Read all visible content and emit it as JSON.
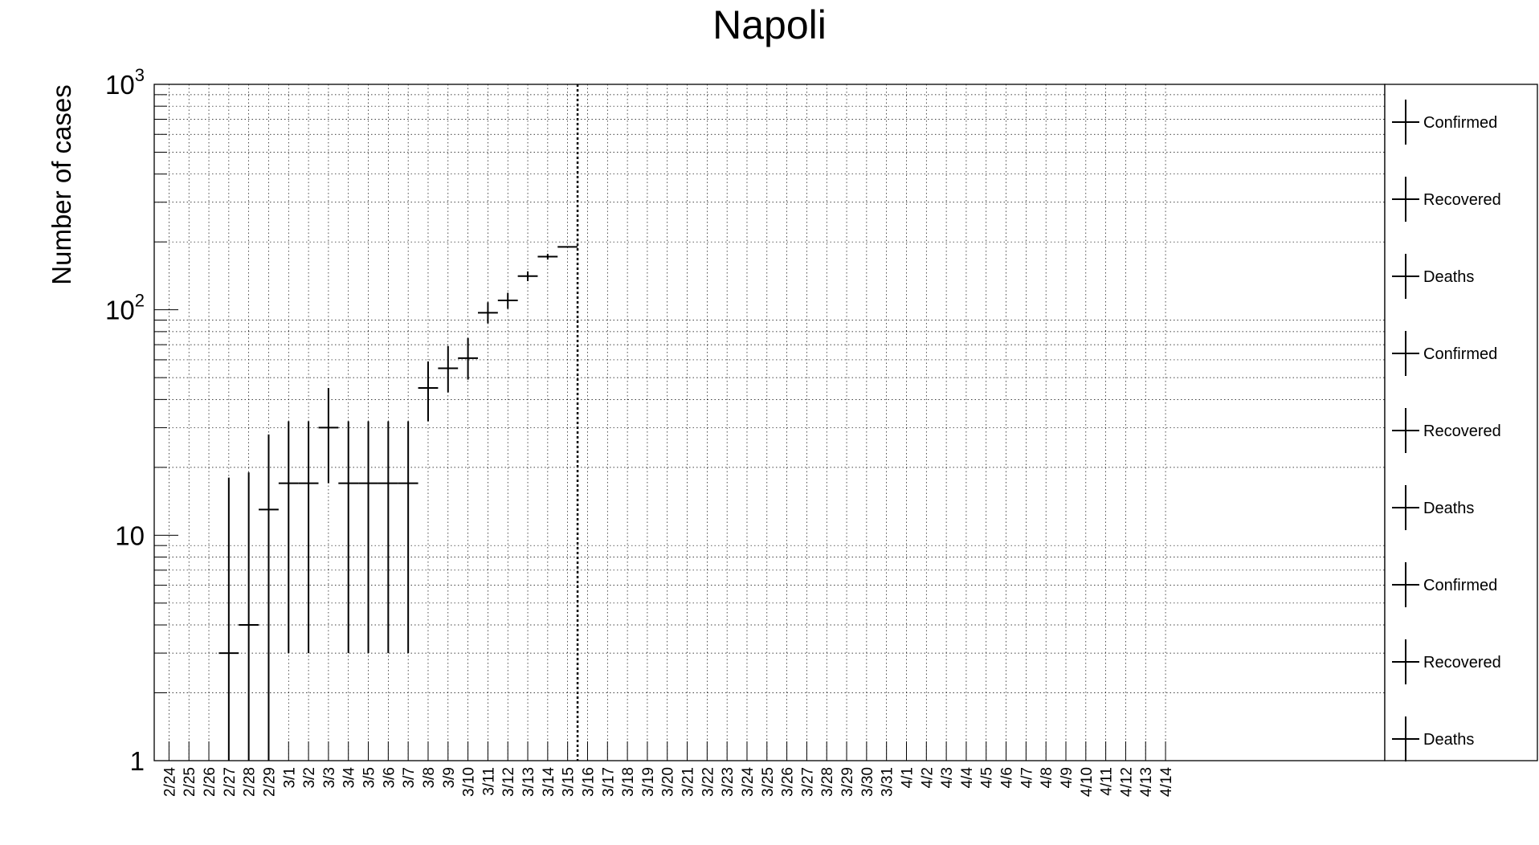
{
  "chart_data": {
    "type": "scatter",
    "title": "Napoli",
    "xlabel": "",
    "ylabel": "Number of cases",
    "yscale": "log",
    "ylim": [
      1,
      1000
    ],
    "grid": true,
    "legend_position": "right",
    "yticks": [
      {
        "value": 1,
        "label": "1"
      },
      {
        "value": 10,
        "label": "10"
      },
      {
        "value": 100,
        "label": "10",
        "sup": "2"
      },
      {
        "value": 1000,
        "label": "10",
        "sup": "3"
      }
    ],
    "categories": [
      "2/24",
      "2/25",
      "2/26",
      "2/27",
      "2/28",
      "2/29",
      "3/1",
      "3/2",
      "3/3",
      "3/4",
      "3/5",
      "3/6",
      "3/7",
      "3/8",
      "3/9",
      "3/10",
      "3/11",
      "3/12",
      "3/13",
      "3/14",
      "3/15",
      "3/16",
      "3/17",
      "3/18",
      "3/19",
      "3/20",
      "3/21",
      "3/22",
      "3/23",
      "3/24",
      "3/25",
      "3/26",
      "3/27",
      "3/28",
      "3/29",
      "3/30",
      "3/31",
      "4/1",
      "4/2",
      "4/3",
      "4/4",
      "4/5",
      "4/6",
      "4/7",
      "4/8",
      "4/9",
      "4/10",
      "4/11",
      "4/12",
      "4/13",
      "4/14"
    ],
    "vertical_marker": {
      "between": [
        "3/15",
        "3/16"
      ],
      "style": "dotted"
    },
    "series": [
      {
        "name": "Confirmed",
        "points": [
          {
            "x": "2/27",
            "y": 3,
            "ylow": 1,
            "yhigh": 18
          },
          {
            "x": "2/28",
            "y": 4,
            "ylow": 1,
            "yhigh": 19
          },
          {
            "x": "2/29",
            "y": 13,
            "ylow": 1,
            "yhigh": 28
          },
          {
            "x": "3/1",
            "y": 17,
            "ylow": 3,
            "yhigh": 32
          },
          {
            "x": "3/2",
            "y": 17,
            "ylow": 3,
            "yhigh": 32
          },
          {
            "x": "3/3",
            "y": 30,
            "ylow": 17,
            "yhigh": 45
          },
          {
            "x": "3/4",
            "y": 17,
            "ylow": 3,
            "yhigh": 32
          },
          {
            "x": "3/5",
            "y": 17,
            "ylow": 3,
            "yhigh": 32
          },
          {
            "x": "3/6",
            "y": 17,
            "ylow": 3,
            "yhigh": 32
          },
          {
            "x": "3/7",
            "y": 17,
            "ylow": 3,
            "yhigh": 32
          },
          {
            "x": "3/8",
            "y": 45,
            "ylow": 32,
            "yhigh": 59
          },
          {
            "x": "3/9",
            "y": 55,
            "ylow": 43,
            "yhigh": 69
          },
          {
            "x": "3/10",
            "y": 61,
            "ylow": 49,
            "yhigh": 75
          },
          {
            "x": "3/11",
            "y": 97,
            "ylow": 87,
            "yhigh": 108
          },
          {
            "x": "3/12",
            "y": 110,
            "ylow": 101,
            "yhigh": 119
          },
          {
            "x": "3/13",
            "y": 141,
            "ylow": 134,
            "yhigh": 148
          },
          {
            "x": "3/14",
            "y": 172,
            "ylow": 167,
            "yhigh": 177
          },
          {
            "x": "3/15",
            "y": 190,
            "ylow": 189,
            "yhigh": 191
          }
        ]
      },
      {
        "name": "Recovered",
        "points": []
      },
      {
        "name": "Deaths",
        "points": []
      }
    ],
    "legend": [
      "Confirmed",
      "Recovered",
      "Deaths",
      "Confirmed",
      "Recovered",
      "Deaths",
      "Confirmed",
      "Recovered",
      "Deaths"
    ]
  }
}
